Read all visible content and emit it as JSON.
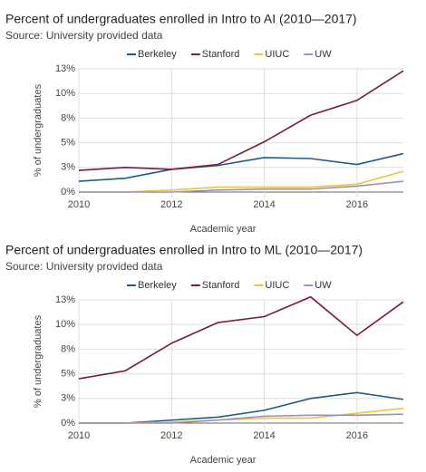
{
  "chart_data": [
    {
      "type": "line",
      "title": "Percent of undergraduates enrolled in Intro to AI (2010—2017)",
      "subtitle": "Source: University provided data",
      "x_label": "Academic year",
      "y_label": "% of undergraduates",
      "x": [
        2010,
        2011,
        2012,
        2013,
        2014,
        2015,
        2016,
        2017
      ],
      "xlim": [
        2010,
        2017
      ],
      "xticks": [
        2010,
        2012,
        2014,
        2016
      ],
      "ylim": [
        0,
        12.5
      ],
      "yticks": [
        {
          "value": 0,
          "label": "0%"
        },
        {
          "value": 2.5,
          "label": "3%"
        },
        {
          "value": 5,
          "label": "5%"
        },
        {
          "value": 7.5,
          "label": "8%"
        },
        {
          "value": 10,
          "label": "10%"
        },
        {
          "value": 12.5,
          "label": "13%"
        }
      ],
      "grid": true,
      "legend": "top",
      "series": [
        {
          "name": "Berkeley",
          "color": "#1f5b85",
          "values": [
            1.1,
            1.4,
            2.3,
            2.7,
            3.5,
            3.4,
            2.8,
            3.9
          ]
        },
        {
          "name": "Stanford",
          "color": "#7a1c34",
          "values": [
            2.2,
            2.5,
            2.3,
            2.8,
            5.1,
            7.8,
            9.3,
            12.3
          ]
        },
        {
          "name": "UIUC",
          "color": "#f0c534",
          "values": [
            0,
            0,
            0.2,
            0.5,
            0.5,
            0.5,
            0.8,
            2.1
          ]
        },
        {
          "name": "UW",
          "color": "#9c8fbf",
          "values": [
            0,
            0,
            0,
            0.2,
            0.3,
            0.3,
            0.6,
            1.1
          ]
        }
      ]
    },
    {
      "type": "line",
      "title": "Percent of undergraduates enrolled in Intro to ML (2010—2017)",
      "subtitle": "Source: University provided data",
      "x_label": "Academic year",
      "y_label": "% of undergraduates",
      "x": [
        2010,
        2011,
        2012,
        2013,
        2014,
        2015,
        2016,
        2017
      ],
      "xlim": [
        2010,
        2017
      ],
      "xticks": [
        2010,
        2012,
        2014,
        2016
      ],
      "ylim": [
        0,
        13
      ],
      "yticks": [
        {
          "value": 0,
          "label": "0%"
        },
        {
          "value": 2.5,
          "label": "3%"
        },
        {
          "value": 5,
          "label": "5%"
        },
        {
          "value": 7.5,
          "label": "8%"
        },
        {
          "value": 10,
          "label": "10%"
        },
        {
          "value": 12.5,
          "label": "13%"
        }
      ],
      "grid": true,
      "legend": "top",
      "series": [
        {
          "name": "Berkeley",
          "color": "#1f5b85",
          "values": [
            0,
            0,
            0.3,
            0.6,
            1.3,
            2.5,
            3.1,
            2.4
          ]
        },
        {
          "name": "Stanford",
          "color": "#7a1c34",
          "values": [
            4.5,
            5.3,
            8.1,
            10.2,
            10.8,
            12.8,
            8.9,
            12.3
          ]
        },
        {
          "name": "UIUC",
          "color": "#f0c534",
          "values": [
            0,
            0,
            0.1,
            0.3,
            0.5,
            0.5,
            1.0,
            1.5
          ]
        },
        {
          "name": "UW",
          "color": "#9c8fbf",
          "values": [
            0,
            0,
            0,
            0.3,
            0.7,
            0.8,
            0.8,
            0.9
          ]
        }
      ]
    }
  ]
}
